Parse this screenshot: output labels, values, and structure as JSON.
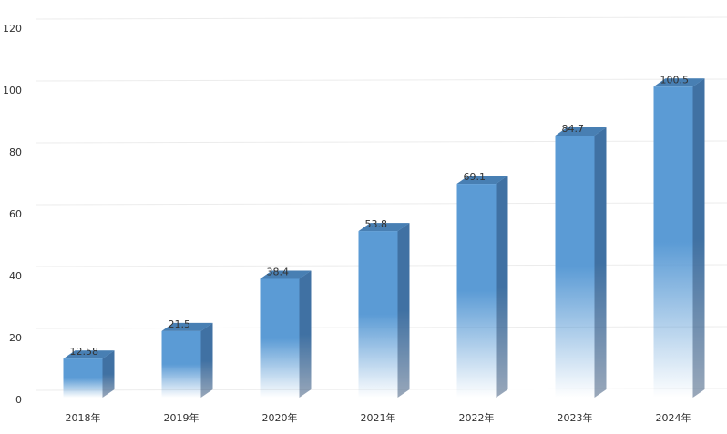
{
  "chart_data": {
    "type": "bar",
    "categories": [
      "2018年",
      "2019年",
      "2020年",
      "2021年",
      "2022年",
      "2023年",
      "2024年"
    ],
    "values": [
      12.58,
      21.5,
      38.4,
      53.8,
      69.1,
      84.7,
      100.5
    ],
    "color": "#5b9bd5",
    "ylim": [
      0,
      120
    ],
    "yticks": [
      0,
      20,
      40,
      60,
      80,
      100,
      120
    ],
    "grid": true
  }
}
